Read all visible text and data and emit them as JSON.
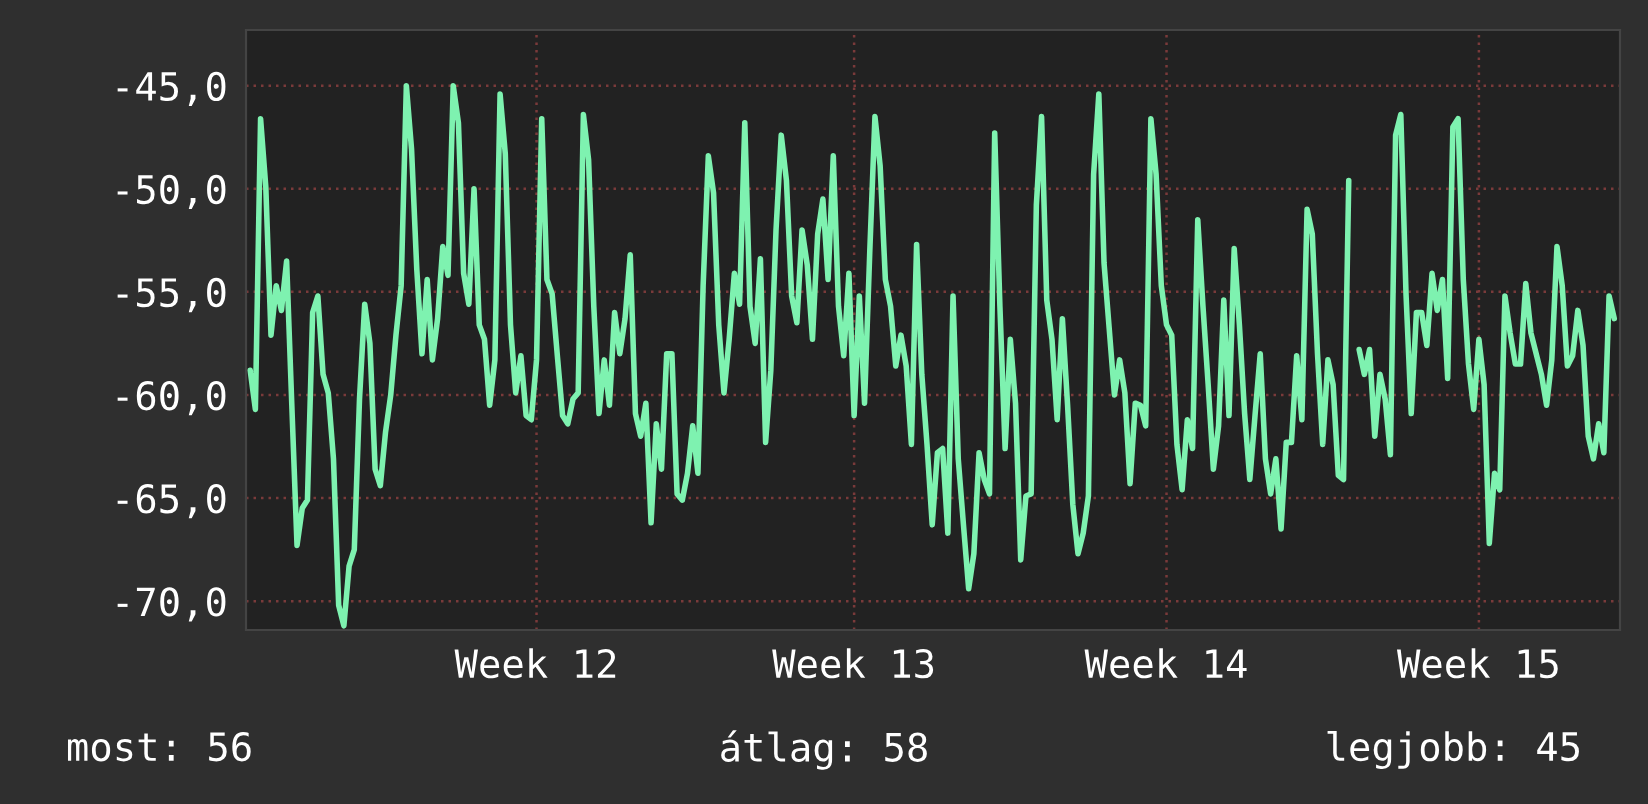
{
  "chart_data": {
    "type": "line",
    "categories": [
      null,
      null,
      null,
      null,
      null,
      null,
      null,
      null,
      null,
      null,
      null,
      null,
      null,
      null,
      null,
      null,
      null,
      null,
      null,
      null,
      null,
      null,
      null,
      null,
      null,
      null,
      null,
      null,
      null,
      null,
      null,
      null,
      null,
      null,
      null,
      null,
      null,
      null,
      null,
      null,
      null,
      null,
      null,
      null,
      null,
      null,
      null,
      null,
      null,
      null,
      null,
      null,
      null,
      null,
      null,
      "Week 12",
      null,
      null,
      null,
      null,
      null,
      null,
      null,
      null,
      null,
      null,
      null,
      null,
      null,
      null,
      null,
      null,
      null,
      null,
      null,
      null,
      null,
      null,
      null,
      null,
      null,
      null,
      null,
      null,
      null,
      null,
      null,
      null,
      null,
      null,
      null,
      null,
      null,
      null,
      null,
      null,
      null,
      null,
      null,
      null,
      null,
      null,
      null,
      null,
      null,
      null,
      null,
      null,
      null,
      null,
      null,
      null,
      null,
      null,
      null,
      null,
      "Week 13",
      null,
      null,
      null,
      null,
      null,
      null,
      null,
      null,
      null,
      null,
      null,
      null,
      null,
      null,
      null,
      null,
      null,
      null,
      null,
      null,
      null,
      null,
      null,
      null,
      null,
      null,
      null,
      null,
      null,
      null,
      null,
      null,
      null,
      null,
      null,
      null,
      null,
      null,
      null,
      null,
      null,
      null,
      null,
      null,
      null,
      null,
      null,
      null,
      null,
      null,
      null,
      null,
      null,
      null,
      null,
      null,
      null,
      null,
      null,
      "Week 14",
      null,
      null,
      null,
      null,
      null,
      null,
      null,
      null,
      null,
      null,
      null,
      null,
      null,
      null,
      null,
      null,
      null,
      null,
      null,
      null,
      null,
      null,
      null,
      null,
      null,
      null,
      null,
      null,
      null,
      null,
      null,
      null,
      null,
      null,
      null,
      null,
      null,
      null,
      null,
      null,
      null,
      null,
      null,
      null,
      null,
      null,
      null,
      null,
      null,
      null,
      null,
      null,
      null,
      null,
      null,
      null,
      null,
      null,
      null,
      "Week 15",
      null,
      null,
      null,
      null,
      null,
      null,
      null,
      null,
      null,
      null,
      null,
      null,
      null,
      null,
      null,
      null,
      null,
      null,
      null,
      null,
      null,
      null,
      null,
      null,
      null,
      null
    ],
    "series": [
      {
        "color": "#7ef2b0",
        "values": [
          -58.8,
          -60.7,
          -46.6,
          -49.9,
          -57.1,
          -54.7,
          -55.9,
          -53.5,
          -60.5,
          -67.3,
          -65.5,
          -65.1,
          -56.0,
          -55.2,
          -59.0,
          -59.9,
          -63.1,
          -70.2,
          -71.2,
          -68.3,
          -67.5,
          -60.2,
          -55.6,
          -57.5,
          -63.6,
          -64.4,
          -61.8,
          -60.0,
          -57.1,
          -54.7,
          -45.0,
          -48.1,
          -53.9,
          -58.0,
          -54.4,
          -58.3,
          -56.3,
          -52.8,
          -54.2,
          -45.0,
          -46.8,
          -54.1,
          -55.6,
          -50.0,
          -56.6,
          -57.3,
          -60.5,
          -58.3,
          -45.4,
          -48.3,
          -56.6,
          -59.9,
          -58.1,
          -61.0,
          -61.2,
          -58.3,
          -46.6,
          -54.4,
          -55.1,
          -58.1,
          -61.0,
          -61.4,
          -60.2,
          -59.9,
          -46.4,
          -48.6,
          -55.7,
          -60.9,
          -58.3,
          -60.5,
          -56.0,
          -58.0,
          -56.3,
          -53.2,
          -60.9,
          -62.0,
          -60.4,
          -66.2,
          -61.4,
          -63.6,
          -58.0,
          -58.0,
          -64.8,
          -65.1,
          -63.8,
          -61.5,
          -63.8,
          -54.7,
          -48.4,
          -50.2,
          -56.6,
          -59.9,
          -57.3,
          -54.1,
          -55.6,
          -46.8,
          -55.7,
          -57.5,
          -53.4,
          -62.3,
          -58.8,
          -52.0,
          -47.4,
          -49.6,
          -55.2,
          -56.5,
          -52.0,
          -53.7,
          -57.3,
          -52.2,
          -50.5,
          -54.4,
          -48.4,
          -55.7,
          -58.1,
          -54.1,
          -61.0,
          -55.2,
          -60.4,
          -53.1,
          -46.5,
          -48.9,
          -54.4,
          -55.7,
          -58.6,
          -57.1,
          -58.6,
          -62.4,
          -52.7,
          -59.0,
          -62.4,
          -66.3,
          -62.8,
          -62.6,
          -66.7,
          -55.2,
          -63.1,
          -66.3,
          -69.4,
          -67.7,
          -62.8,
          -64.1,
          -64.8,
          -47.3,
          -55.7,
          -62.6,
          -57.3,
          -60.4,
          -68.0,
          -64.9,
          -64.8,
          -50.8,
          -46.5,
          -55.4,
          -57.3,
          -61.2,
          -56.3,
          -60.5,
          -65.3,
          -67.7,
          -66.7,
          -64.9,
          -49.3,
          -45.4,
          -53.6,
          -56.8,
          -60.0,
          -58.3,
          -59.9,
          -64.3,
          -60.4,
          -60.5,
          -61.5,
          -46.6,
          -49.3,
          -54.7,
          -56.6,
          -57.1,
          -62.4,
          -64.6,
          -61.2,
          -62.6,
          -51.5,
          -55.7,
          -59.5,
          -63.6,
          -61.5,
          -55.4,
          -61.0,
          -52.9,
          -56.6,
          -60.9,
          -64.1,
          -61.0,
          -58.0,
          -63.1,
          -64.8,
          -63.1,
          -66.5,
          -62.3,
          -62.3,
          -58.1,
          -61.2,
          -51.0,
          -52.2,
          -58.0,
          -62.4,
          -58.3,
          -59.5,
          -63.9,
          -64.1,
          -49.6,
          null,
          -57.8,
          -59.0,
          -57.8,
          -62.0,
          -59.0,
          -60.2,
          -62.9,
          -47.4,
          -46.4,
          -55.1,
          -60.9,
          -56.0,
          -56.0,
          -57.6,
          -54.1,
          -55.9,
          -54.4,
          -59.2,
          -47.0,
          -46.6,
          -54.4,
          -58.5,
          -60.7,
          -57.3,
          -59.5,
          -67.2,
          -63.8,
          -64.6,
          -55.2,
          -57.0,
          -58.5,
          -58.5,
          -54.6,
          -57.0,
          -58.0,
          -59.0,
          -60.5,
          -58.3,
          -52.8,
          -54.7,
          -58.6,
          -58.1,
          -55.9,
          -57.6,
          -62.0,
          -63.1,
          -61.4,
          -62.8,
          -55.2,
          -56.3
        ]
      }
    ],
    "ylim": [
      -71.4,
      -42.3
    ],
    "yticks": [
      {
        "value": -70,
        "label": "-70,0"
      },
      {
        "value": -65,
        "label": "-65,0"
      },
      {
        "value": -60,
        "label": "-60,0"
      },
      {
        "value": -55,
        "label": "-55,0"
      },
      {
        "value": -50,
        "label": "-50,0"
      },
      {
        "value": -45,
        "label": "-45,0"
      }
    ],
    "grid": true,
    "annotations": [
      "most: 56",
      "átlag: 58",
      "legjobb: 45"
    ]
  }
}
